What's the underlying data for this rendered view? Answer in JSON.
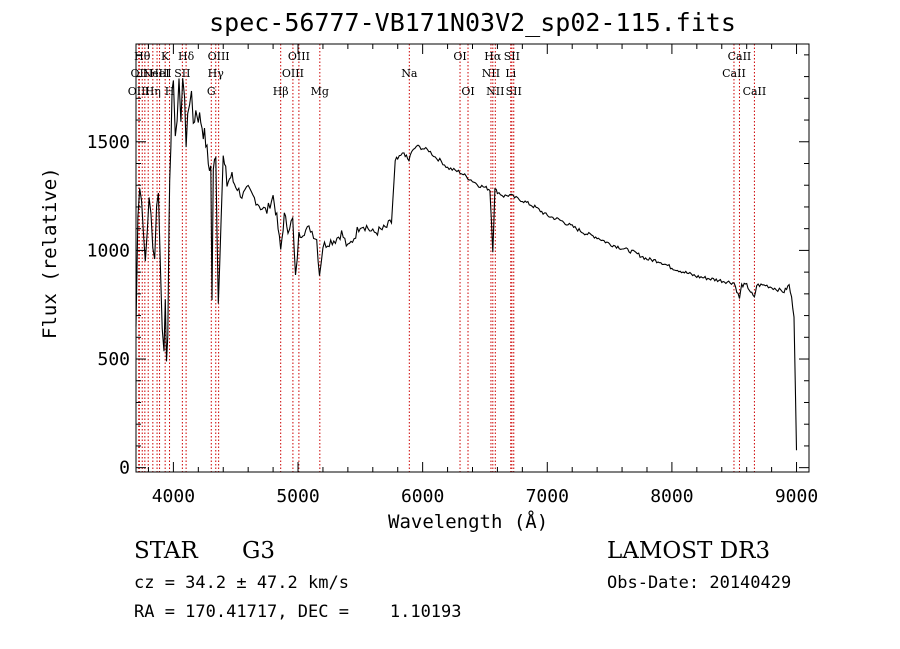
{
  "chart_data": {
    "type": "line",
    "title": "spec-56777-VB171N03V2_sp02-115.fits",
    "xlabel": "Wavelength (Å)",
    "ylabel": "Flux (relative)",
    "xlim": [
      3700,
      9100
    ],
    "ylim": [
      -20,
      1950
    ],
    "x_ticks": [
      4000,
      5000,
      6000,
      7000,
      8000,
      9000
    ],
    "x_tick_labels": [
      "4000",
      "5000",
      "6000",
      "7000",
      "8000",
      "9000"
    ],
    "y_ticks": [
      0,
      500,
      1000,
      1500
    ],
    "y_tick_labels": [
      "0",
      "500",
      "1000",
      "1500"
    ],
    "series": [
      {
        "name": "spectrum",
        "x": [
          3700,
          3715,
          3730,
          3745,
          3760,
          3775,
          3790,
          3805,
          3820,
          3835,
          3850,
          3865,
          3880,
          3895,
          3910,
          3925,
          3935,
          3945,
          3955,
          3965,
          3970,
          3980,
          3990,
          4000,
          4015,
          4030,
          4045,
          4060,
          4075,
          4090,
          4102,
          4115,
          4130,
          4145,
          4160,
          4180,
          4200,
          4220,
          4240,
          4260,
          4280,
          4300,
          4310,
          4320,
          4340,
          4360,
          4383,
          4400,
          4430,
          4460,
          4500,
          4550,
          4600,
          4650,
          4700,
          4750,
          4800,
          4830,
          4861,
          4890,
          4920,
          4957,
          4980,
          5007,
          5050,
          5100,
          5150,
          5172,
          5200,
          5250,
          5300,
          5350,
          5400,
          5450,
          5500,
          5550,
          5600,
          5650,
          5700,
          5750,
          5780,
          5800,
          5850,
          5890,
          5900,
          5950,
          6000,
          6050,
          6100,
          6150,
          6200,
          6250,
          6300,
          6350,
          6400,
          6450,
          6500,
          6540,
          6563,
          6580,
          6600,
          6650,
          6700,
          6750,
          6800,
          6900,
          7000,
          7100,
          7200,
          7300,
          7400,
          7500,
          7600,
          7700,
          7800,
          7900,
          8000,
          8100,
          8200,
          8300,
          8400,
          8500,
          8542,
          8560,
          8600,
          8662,
          8680,
          8750,
          8800,
          8850,
          8900,
          8940,
          8960,
          8980,
          9000
        ],
        "y": [
          650,
          1150,
          1320,
          1250,
          1080,
          950,
          1120,
          1210,
          1160,
          1020,
          980,
          1180,
          1250,
          980,
          640,
          560,
          760,
          520,
          600,
          1120,
          1350,
          1520,
          1700,
          1740,
          1560,
          1600,
          1750,
          1620,
          1800,
          1700,
          1460,
          1650,
          1700,
          1690,
          1590,
          1640,
          1620,
          1600,
          1550,
          1500,
          1400,
          1380,
          780,
          1350,
          1460,
          760,
          1180,
          1420,
          1310,
          1340,
          1300,
          1250,
          1280,
          1240,
          1200,
          1180,
          1250,
          1150,
          1000,
          1160,
          1100,
          1140,
          870,
          1070,
          1090,
          1100,
          1050,
          890,
          1020,
          1040,
          1050,
          1080,
          1010,
          1060,
          1120,
          1110,
          1080,
          1090,
          1100,
          1130,
          1400,
          1420,
          1450,
          1410,
          1440,
          1480,
          1470,
          1460,
          1430,
          1410,
          1380,
          1370,
          1360,
          1340,
          1320,
          1300,
          1290,
          1280,
          1000,
          1280,
          1270,
          1250,
          1255,
          1240,
          1230,
          1200,
          1160,
          1140,
          1110,
          1080,
          1060,
          1030,
          1010,
          990,
          960,
          950,
          920,
          900,
          880,
          870,
          860,
          850,
          780,
          840,
          840,
          780,
          840,
          840,
          830,
          820,
          810,
          840,
          780,
          700,
          80
        ]
      }
    ],
    "line_markers": [
      {
        "wavelength": 3722,
        "row": 2,
        "label": "OIII"
      },
      {
        "wavelength": 3727,
        "row": 1,
        "label": "OII"
      },
      {
        "wavelength": 3750,
        "row": 0,
        "label": "Hθ"
      },
      {
        "wavelength": 3771,
        "row": 0,
        "label": ""
      },
      {
        "wavelength": 3798,
        "row": 2,
        "label": ""
      },
      {
        "wavelength": 3835,
        "row": 2,
        "label": "Hη"
      },
      {
        "wavelength": 3869,
        "row": 1,
        "label": "NeIII"
      },
      {
        "wavelength": 3889,
        "row": 1,
        "label": "HeI"
      },
      {
        "wavelength": 3934,
        "row": 0,
        "label": "K"
      },
      {
        "wavelength": 3969,
        "row": 2,
        "label": "H"
      },
      {
        "wavelength": 4072,
        "row": 1,
        "label": "SII"
      },
      {
        "wavelength": 4102,
        "row": 0,
        "label": "Hδ"
      },
      {
        "wavelength": 4304,
        "row": 2,
        "label": "G"
      },
      {
        "wavelength": 4340,
        "row": 1,
        "label": "Hγ"
      },
      {
        "wavelength": 4363,
        "row": 0,
        "label": "OIII"
      },
      {
        "wavelength": 4861,
        "row": 2,
        "label": "Hβ"
      },
      {
        "wavelength": 4959,
        "row": 1,
        "label": "OIII"
      },
      {
        "wavelength": 5007,
        "row": 0,
        "label": "OIII"
      },
      {
        "wavelength": 5175,
        "row": 2,
        "label": "Mg"
      },
      {
        "wavelength": 5893,
        "row": 1,
        "label": "Na"
      },
      {
        "wavelength": 6300,
        "row": 0,
        "label": "OI"
      },
      {
        "wavelength": 6364,
        "row": 2,
        "label": "OI"
      },
      {
        "wavelength": 6548,
        "row": 1,
        "label": "NII"
      },
      {
        "wavelength": 6563,
        "row": 0,
        "label": "Hα"
      },
      {
        "wavelength": 6583,
        "row": 2,
        "label": "NII"
      },
      {
        "wavelength": 6707,
        "row": 1,
        "label": "Li"
      },
      {
        "wavelength": 6716,
        "row": 0,
        "label": "SII"
      },
      {
        "wavelength": 6731,
        "row": 2,
        "label": "SII"
      },
      {
        "wavelength": 8498,
        "row": 1,
        "label": "CaII"
      },
      {
        "wavelength": 8542,
        "row": 0,
        "label": "CaII"
      },
      {
        "wavelength": 8662,
        "row": 2,
        "label": "CaII"
      }
    ]
  },
  "info": {
    "class_label": "STAR",
    "subclass": "G3",
    "survey": "LAMOST DR3",
    "cz": "cz = 34.2 ± 47.2 km/s",
    "obs_date": "Obs-Date: 20140429",
    "coords": "RA = 170.41717, DEC =    1.10193"
  },
  "colors": {
    "line_marker": "#cc0000",
    "axis": "#000000",
    "spectrum": "#000000"
  }
}
